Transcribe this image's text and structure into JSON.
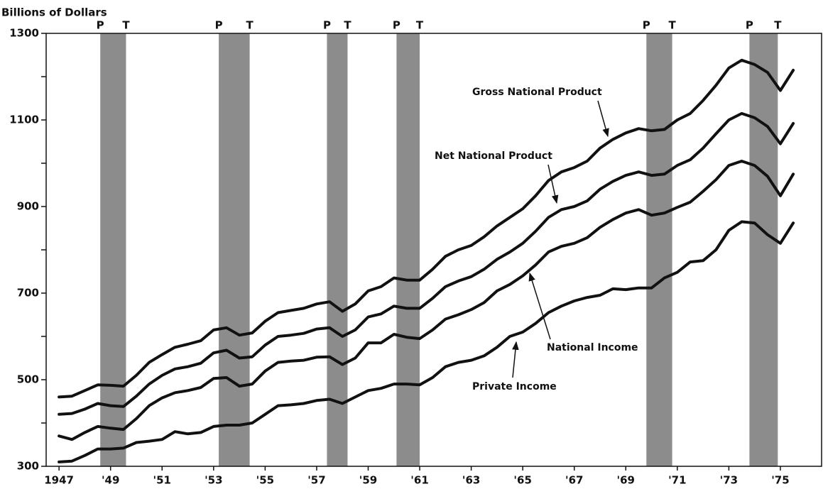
{
  "chart_data": {
    "type": "line",
    "y_axis_label": "Billions of Dollars",
    "xlim": [
      1946.5,
      1976.6
    ],
    "ylim": [
      300,
      1300
    ],
    "yticks": [
      300,
      500,
      700,
      900,
      1100,
      1300
    ],
    "yminor_ticks": [
      400,
      600,
      800,
      1000,
      1200
    ],
    "xticks": [
      1947,
      {
        "value": 1949,
        "label": "'49"
      },
      {
        "value": 1951,
        "label": "'51"
      },
      {
        "value": 1953,
        "label": "'53"
      },
      {
        "value": 1955,
        "label": "'55"
      },
      {
        "value": 1957,
        "label": "'57"
      },
      {
        "value": 1959,
        "label": "'59"
      },
      {
        "value": 1961,
        "label": "'61"
      },
      {
        "value": 1963,
        "label": "'63"
      },
      {
        "value": 1965,
        "label": "'65"
      },
      {
        "value": 1967,
        "label": "'67"
      },
      {
        "value": 1969,
        "label": "'69"
      },
      {
        "value": 1971,
        "label": "'71"
      },
      {
        "value": 1973,
        "label": "'73"
      },
      {
        "value": 1975,
        "label": "'75"
      }
    ],
    "recession_color": "#8c8c8c",
    "peak_label": "P",
    "trough_label": "T",
    "recessions": [
      [
        1948.6,
        1949.6
      ],
      [
        1953.2,
        1954.4
      ],
      [
        1957.4,
        1958.2
      ],
      [
        1960.1,
        1961.0
      ],
      [
        1969.8,
        1970.8
      ],
      [
        1973.8,
        1974.9
      ]
    ],
    "x": [
      1947,
      1947.5,
      1948,
      1948.5,
      1949,
      1949.5,
      1950,
      1950.5,
      1951,
      1951.5,
      1952,
      1952.5,
      1953,
      1953.5,
      1954,
      1954.5,
      1955,
      1955.5,
      1956,
      1956.5,
      1957,
      1957.5,
      1958,
      1958.5,
      1959,
      1959.5,
      1960,
      1960.5,
      1961,
      1961.5,
      1962,
      1962.5,
      1963,
      1963.5,
      1964,
      1964.5,
      1965,
      1965.5,
      1966,
      1966.5,
      1967,
      1967.5,
      1968,
      1968.5,
      1969,
      1969.5,
      1970,
      1970.5,
      1971,
      1971.5,
      1972,
      1972.5,
      1973,
      1973.5,
      1974,
      1974.5,
      1975,
      1975.5
    ],
    "series": [
      {
        "name": "Gross National Product",
        "color": "#111111",
        "values": [
          460,
          462,
          475,
          488,
          487,
          485,
          510,
          540,
          558,
          575,
          582,
          590,
          615,
          620,
          603,
          608,
          635,
          655,
          660,
          665,
          675,
          680,
          658,
          675,
          705,
          715,
          735,
          730,
          730,
          755,
          785,
          800,
          810,
          830,
          855,
          875,
          895,
          925,
          960,
          980,
          990,
          1005,
          1035,
          1055,
          1070,
          1080,
          1075,
          1078,
          1100,
          1115,
          1145,
          1180,
          1220,
          1238,
          1228,
          1210,
          1168,
          1215
        ]
      },
      {
        "name": "Net National Product",
        "color": "#111111",
        "values": [
          420,
          422,
          432,
          445,
          440,
          438,
          462,
          490,
          510,
          525,
          530,
          538,
          562,
          568,
          550,
          553,
          580,
          600,
          603,
          607,
          617,
          620,
          600,
          615,
          645,
          652,
          670,
          665,
          665,
          688,
          715,
          728,
          738,
          755,
          778,
          795,
          815,
          843,
          875,
          893,
          900,
          913,
          940,
          958,
          972,
          980,
          972,
          975,
          995,
          1008,
          1035,
          1068,
          1100,
          1115,
          1105,
          1085,
          1045,
          1092
        ]
      },
      {
        "name": "National Income",
        "color": "#111111",
        "values": [
          370,
          362,
          378,
          392,
          388,
          385,
          410,
          440,
          458,
          470,
          475,
          482,
          503,
          505,
          485,
          490,
          520,
          540,
          543,
          545,
          552,
          553,
          535,
          550,
          585,
          585,
          605,
          598,
          595,
          615,
          640,
          650,
          662,
          678,
          705,
          720,
          740,
          765,
          795,
          808,
          815,
          828,
          852,
          870,
          885,
          893,
          880,
          885,
          898,
          910,
          935,
          962,
          995,
          1005,
          995,
          970,
          925,
          975
        ]
      },
      {
        "name": "Private Income",
        "color": "#111111",
        "values": [
          310,
          312,
          325,
          340,
          340,
          342,
          355,
          358,
          362,
          380,
          375,
          378,
          392,
          395,
          395,
          400,
          420,
          440,
          442,
          445,
          452,
          455,
          445,
          460,
          475,
          480,
          490,
          490,
          488,
          505,
          530,
          540,
          545,
          555,
          575,
          600,
          610,
          630,
          655,
          670,
          682,
          690,
          695,
          710,
          708,
          712,
          712,
          735,
          748,
          772,
          775,
          800,
          845,
          865,
          862,
          835,
          815,
          862
        ]
      }
    ]
  }
}
